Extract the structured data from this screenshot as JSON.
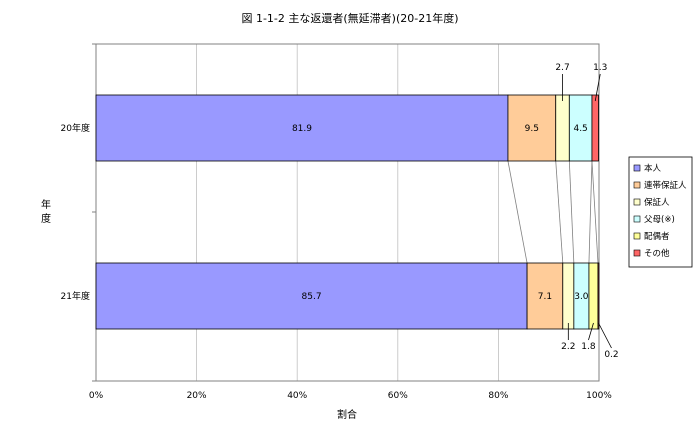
{
  "chart_data": {
    "type": "bar",
    "orientation": "horizontal",
    "stacked": "percent",
    "title": "図 1-1-2  主な返還者(無延滞者)(20-21年度)",
    "xlabel": "割合",
    "ylabel": "年度",
    "xlim": [
      0,
      100
    ],
    "x_ticks": [
      "0%",
      "20%",
      "40%",
      "60%",
      "80%",
      "100%"
    ],
    "categories": [
      "20年度",
      "21年度"
    ],
    "grid": "vertical",
    "series_connector_lines": true,
    "legend_position": "right",
    "series": [
      {
        "name": "本人",
        "color": "#9999ff",
        "values": [
          81.9,
          85.7
        ],
        "labels": [
          "81.9",
          "85.7"
        ]
      },
      {
        "name": "連帯保証人",
        "color": "#ffcc99",
        "values": [
          9.5,
          7.1
        ],
        "labels": [
          "9.5",
          "7.1"
        ]
      },
      {
        "name": "保証人",
        "color": "#ffffcc",
        "values": [
          2.7,
          2.2
        ],
        "labels": [
          "2.7",
          "2.2"
        ]
      },
      {
        "name": "父母(※)",
        "color": "#ccffff",
        "values": [
          4.5,
          3.0
        ],
        "labels": [
          "4.5",
          "3.0"
        ]
      },
      {
        "name": "配偶者",
        "color": "#ffff99",
        "values": [
          0.0,
          1.8
        ],
        "labels": [
          "",
          "1.8"
        ]
      },
      {
        "name": "その他",
        "color": "#ff6666",
        "values": [
          1.3,
          0.2
        ],
        "labels": [
          "1.3",
          "0.2"
        ]
      }
    ]
  }
}
